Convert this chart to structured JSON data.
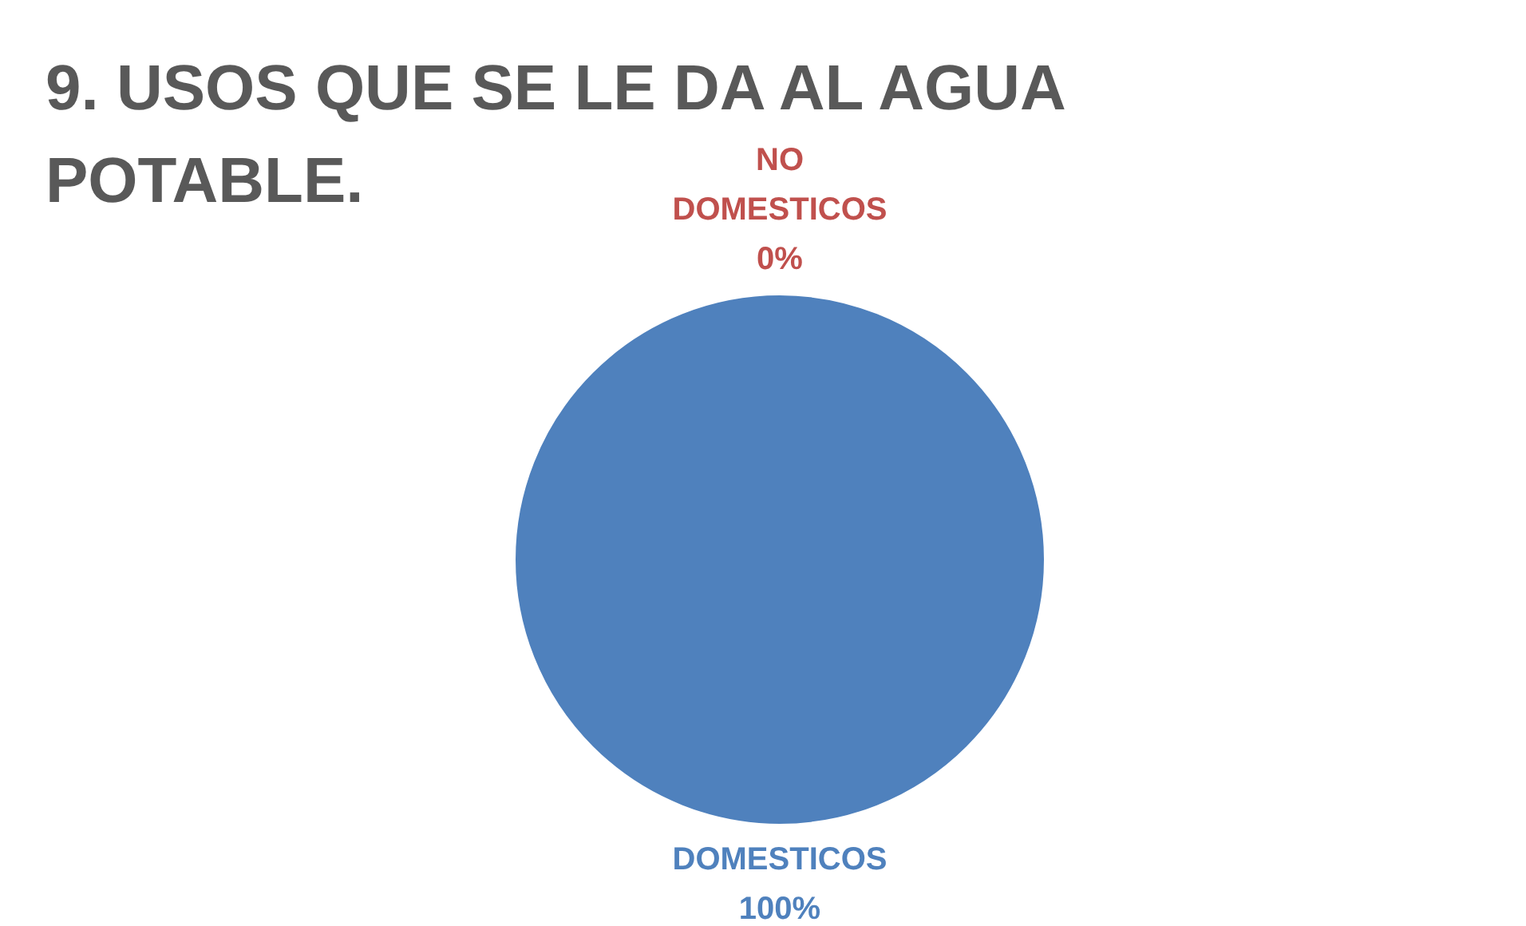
{
  "chart_data": {
    "type": "pie",
    "title": "9. USOS QUE SE LE DA AL AGUA POTABLE.",
    "categories": [
      "DOMESTICOS",
      "NO DOMESTICOS"
    ],
    "values": [
      100,
      0
    ],
    "colors": [
      "#4f81bd",
      "#c0504d"
    ],
    "value_labels": [
      "100%",
      "0%"
    ]
  }
}
